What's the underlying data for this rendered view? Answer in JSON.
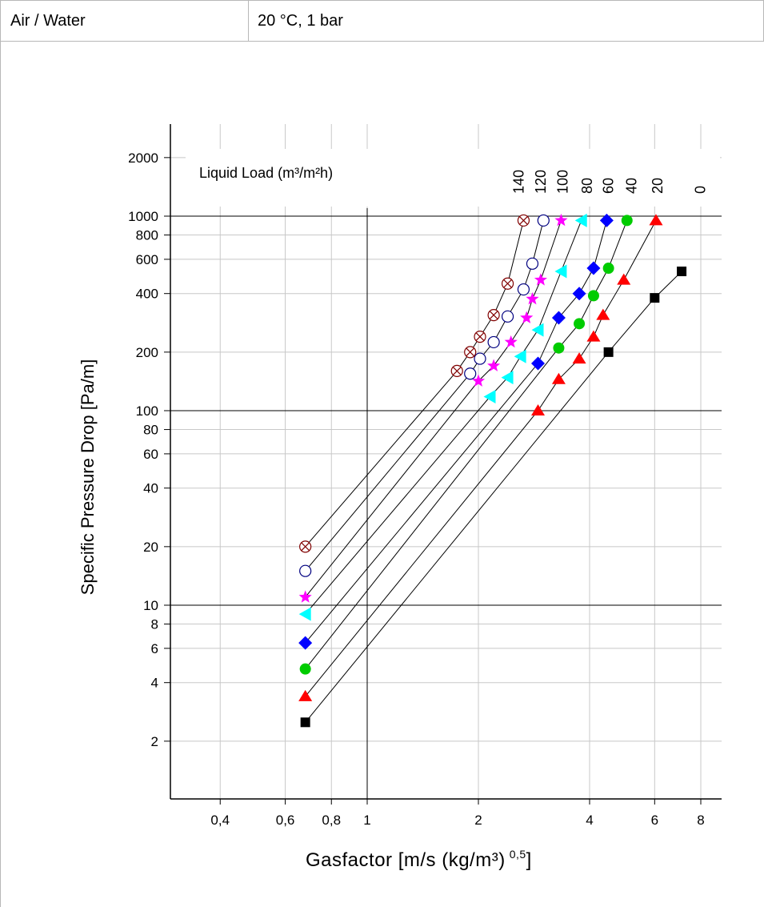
{
  "header": {
    "left": "Air / Water",
    "right": "20 °C, 1 bar"
  },
  "chart_data": {
    "type": "scatter",
    "xlabel": "Gasfactor [m/s (kg/m³)",
    "xlabel_superscript": "0,5",
    "xlabel_suffix": "]",
    "ylabel": "Specific Pressure Drop [Pa/m]",
    "x_scale": "log",
    "y_scale": "log",
    "xlim": [
      0.28,
      9.5
    ],
    "ylim": [
      1.05,
      3000
    ],
    "x_ticks": [
      {
        "v": 0.4,
        "label": "0,4"
      },
      {
        "v": 0.6,
        "label": "0,6"
      },
      {
        "v": 0.8,
        "label": "0,8"
      },
      {
        "v": 1,
        "label": "1"
      },
      {
        "v": 2,
        "label": "2"
      },
      {
        "v": 4,
        "label": "4"
      },
      {
        "v": 6,
        "label": "6"
      },
      {
        "v": 8,
        "label": "8"
      }
    ],
    "y_ticks": [
      {
        "v": 2,
        "label": "2"
      },
      {
        "v": 4,
        "label": "4"
      },
      {
        "v": 6,
        "label": "6"
      },
      {
        "v": 8,
        "label": "8"
      },
      {
        "v": 10,
        "label": "10"
      },
      {
        "v": 20,
        "label": "20"
      },
      {
        "v": 40,
        "label": "40"
      },
      {
        "v": 60,
        "label": "60"
      },
      {
        "v": 80,
        "label": "80"
      },
      {
        "v": 100,
        "label": "100"
      },
      {
        "v": 200,
        "label": "200"
      },
      {
        "v": 400,
        "label": "400"
      },
      {
        "v": 600,
        "label": "600"
      },
      {
        "v": 800,
        "label": "800"
      },
      {
        "v": 1000,
        "label": "1000"
      },
      {
        "v": 2000,
        "label": "2000"
      }
    ],
    "grid": true,
    "major_lines_x": [
      1
    ],
    "major_lines_y": [
      10,
      100,
      1000
    ],
    "legend_title": "Liquid Load (m³/m²h)",
    "legend_placement": "top",
    "legend_labels": [
      {
        "label": "140",
        "x": 2.55
      },
      {
        "label": "120",
        "x": 2.92
      },
      {
        "label": "100",
        "x": 3.35
      },
      {
        "label": "80",
        "x": 3.9
      },
      {
        "label": "60",
        "x": 4.45
      },
      {
        "label": "40",
        "x": 5.15
      },
      {
        "label": "20",
        "x": 6.05
      },
      {
        "label": "0",
        "x": 7.9
      }
    ],
    "series": [
      {
        "name": "0",
        "marker": "square",
        "color": "#000000",
        "points": [
          [
            0.68,
            2.5
          ],
          [
            4.5,
            200
          ],
          [
            6.0,
            380
          ],
          [
            7.1,
            520
          ]
        ]
      },
      {
        "name": "20",
        "marker": "triangle-up",
        "color": "#ff0000",
        "points": [
          [
            0.68,
            3.4
          ],
          [
            2.9,
            100
          ],
          [
            3.3,
            145
          ],
          [
            3.75,
            185
          ],
          [
            4.1,
            240
          ],
          [
            4.35,
            310
          ],
          [
            4.95,
            470
          ],
          [
            6.05,
            950
          ]
        ]
      },
      {
        "name": "40",
        "marker": "circle",
        "color": "#00cc00",
        "points": [
          [
            0.68,
            4.7
          ],
          [
            3.3,
            210
          ],
          [
            3.75,
            280
          ],
          [
            4.1,
            390
          ],
          [
            4.5,
            540
          ],
          [
            5.05,
            950
          ]
        ]
      },
      {
        "name": "60",
        "marker": "diamond",
        "color": "#0000ff",
        "points": [
          [
            0.68,
            6.4
          ],
          [
            2.9,
            175
          ],
          [
            3.3,
            300
          ],
          [
            3.75,
            400
          ],
          [
            4.1,
            540
          ],
          [
            4.45,
            950
          ]
        ]
      },
      {
        "name": "80",
        "marker": "triangle-left",
        "color": "#00ffff",
        "points": [
          [
            0.68,
            9.0
          ],
          [
            2.15,
            118
          ],
          [
            2.4,
            148
          ],
          [
            2.6,
            190
          ],
          [
            2.9,
            260
          ],
          [
            3.35,
            520
          ],
          [
            3.8,
            950
          ]
        ]
      },
      {
        "name": "100",
        "marker": "star",
        "color": "#ff00ff",
        "points": [
          [
            0.68,
            11
          ],
          [
            2.0,
            142
          ],
          [
            2.2,
            170
          ],
          [
            2.45,
            225
          ],
          [
            2.7,
            300
          ],
          [
            2.8,
            375
          ],
          [
            2.95,
            470
          ],
          [
            3.35,
            950
          ]
        ]
      },
      {
        "name": "120",
        "marker": "circle-open",
        "color": "#000080",
        "points": [
          [
            0.68,
            15
          ],
          [
            1.9,
            155
          ],
          [
            2.02,
            185
          ],
          [
            2.2,
            225
          ],
          [
            2.4,
            305
          ],
          [
            2.65,
            420
          ],
          [
            2.8,
            570
          ],
          [
            3.0,
            950
          ]
        ]
      },
      {
        "name": "140",
        "marker": "circle-x",
        "color": "#800000",
        "points": [
          [
            0.68,
            20
          ],
          [
            1.75,
            160
          ],
          [
            1.9,
            200
          ],
          [
            2.02,
            240
          ],
          [
            2.2,
            310
          ],
          [
            2.4,
            450
          ],
          [
            2.65,
            950
          ]
        ]
      }
    ]
  }
}
